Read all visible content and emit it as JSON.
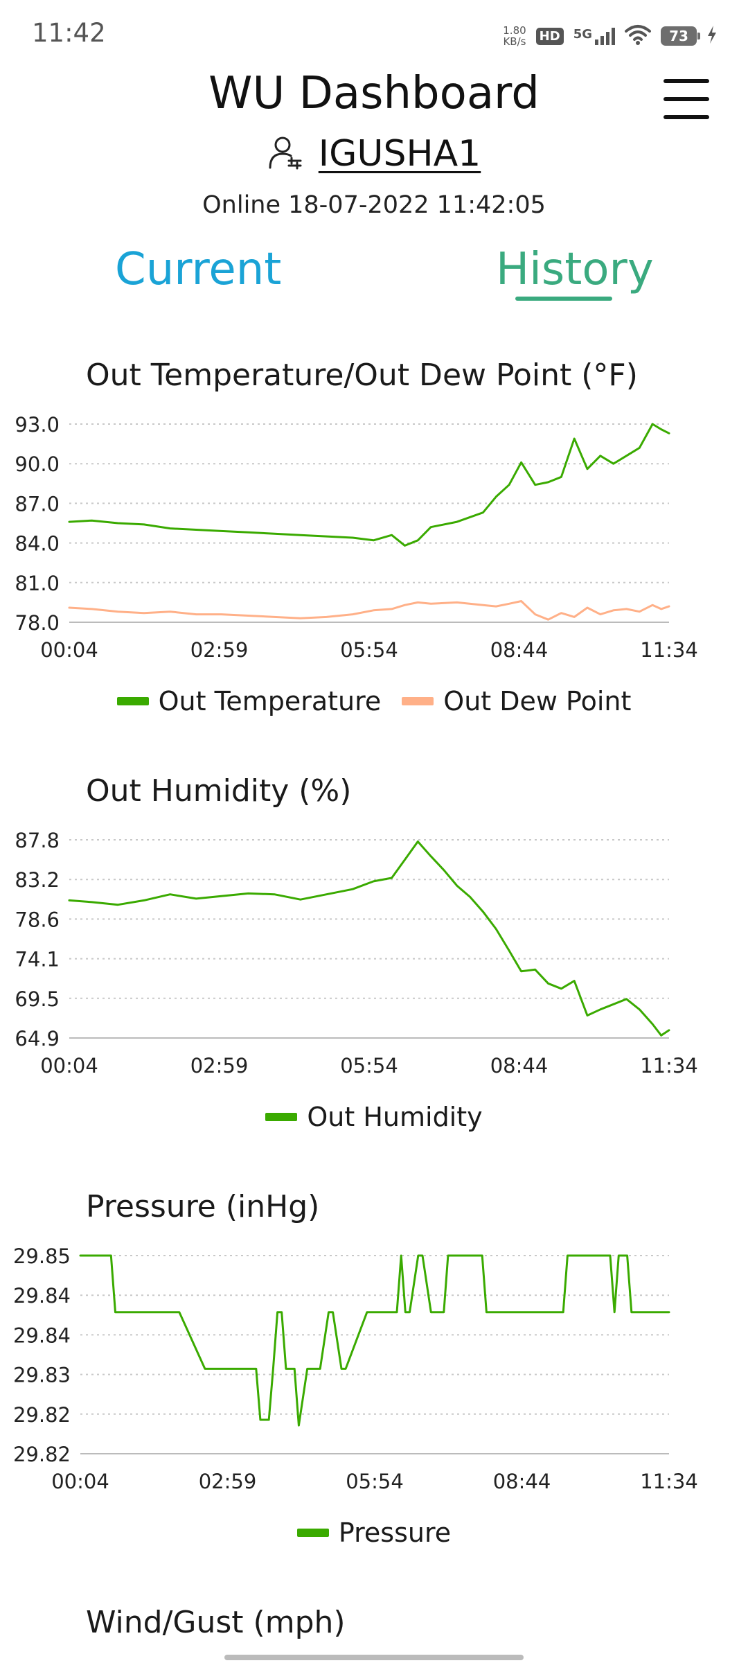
{
  "status_bar": {
    "time": "11:42",
    "net_speed_value": "1.80",
    "net_speed_unit": "KB/s",
    "hd": "HD",
    "network": "5G",
    "battery": "73"
  },
  "header": {
    "title": "WU Dashboard",
    "station_id": "IGUSHA1",
    "online_status": "Online 18-07-2022 11:42:05"
  },
  "tabs": [
    {
      "label": "Current",
      "active": false
    },
    {
      "label": "History",
      "active": true
    }
  ],
  "colors": {
    "green": "#3aaa00",
    "peach": "#ffb088",
    "tab_current": "#1aa3d6",
    "tab_history": "#3aaa7f"
  },
  "icons": [
    "menu-icon",
    "user-settings-icon",
    "wifi-icon",
    "signal-icon",
    "battery-icon",
    "charging-icon"
  ],
  "charts": [
    {
      "title": "Out Temperature/Out Dew Point (°F)"
    },
    {
      "title": "Out Humidity (%)"
    },
    {
      "title": "Pressure (inHg)"
    },
    {
      "title": "Wind/Gust (mph)"
    }
  ],
  "chart_data": [
    {
      "type": "line",
      "title": "Out Temperature/Out Dew Point (°F)",
      "x_tick_labels": [
        "00:04",
        "02:59",
        "05:54",
        "08:44",
        "11:34"
      ],
      "y_tick_labels": [
        "93.0",
        "90.0",
        "87.0",
        "84.0",
        "81.0",
        "78.0"
      ],
      "ylim": [
        78.0,
        93.0
      ],
      "grid": true,
      "legend_position": "bottom",
      "x": [
        "00:04",
        "00:30",
        "01:00",
        "01:30",
        "02:00",
        "02:30",
        "02:59",
        "03:30",
        "04:00",
        "04:30",
        "05:00",
        "05:30",
        "05:54",
        "06:15",
        "06:30",
        "06:45",
        "07:00",
        "07:30",
        "08:00",
        "08:15",
        "08:30",
        "08:44",
        "09:00",
        "09:15",
        "09:30",
        "09:45",
        "10:00",
        "10:15",
        "10:30",
        "10:45",
        "11:00",
        "11:15",
        "11:25",
        "11:34"
      ],
      "series": [
        {
          "name": "Out Temperature",
          "color": "#3aaa00",
          "values": [
            85.6,
            85.7,
            85.5,
            85.4,
            85.1,
            85.0,
            84.9,
            84.8,
            84.7,
            84.6,
            84.5,
            84.4,
            84.2,
            84.6,
            83.8,
            84.2,
            85.2,
            85.6,
            86.3,
            87.5,
            88.4,
            90.1,
            88.4,
            88.6,
            89.0,
            91.9,
            89.6,
            90.6,
            90.0,
            90.6,
            91.2,
            93.0,
            92.6,
            92.3
          ]
        },
        {
          "name": "Out Dew Point",
          "color": "#ffb088",
          "values": [
            79.1,
            79.0,
            78.8,
            78.7,
            78.8,
            78.6,
            78.6,
            78.5,
            78.4,
            78.3,
            78.4,
            78.6,
            78.9,
            79.0,
            79.3,
            79.5,
            79.4,
            79.5,
            79.3,
            79.2,
            79.4,
            79.6,
            78.6,
            78.2,
            78.7,
            78.4,
            79.1,
            78.6,
            78.9,
            79.0,
            78.8,
            79.3,
            79.0,
            79.2
          ]
        }
      ]
    },
    {
      "type": "line",
      "title": "Out Humidity (%)",
      "x_tick_labels": [
        "00:04",
        "02:59",
        "05:54",
        "08:44",
        "11:34"
      ],
      "y_tick_labels": [
        "87.8",
        "83.2",
        "78.6",
        "74.1",
        "69.5",
        "64.9"
      ],
      "ylim": [
        64.9,
        87.8
      ],
      "grid": true,
      "legend_position": "bottom",
      "x": [
        "00:04",
        "00:30",
        "01:00",
        "01:30",
        "02:00",
        "02:30",
        "02:59",
        "03:30",
        "04:00",
        "04:30",
        "05:00",
        "05:30",
        "05:54",
        "06:15",
        "06:30",
        "06:45",
        "07:00",
        "07:15",
        "07:30",
        "07:45",
        "08:00",
        "08:15",
        "08:30",
        "08:44",
        "09:00",
        "09:15",
        "09:30",
        "09:45",
        "10:00",
        "10:15",
        "10:30",
        "10:45",
        "11:00",
        "11:15",
        "11:25",
        "11:34"
      ],
      "series": [
        {
          "name": "Out Humidity",
          "color": "#3aaa00",
          "values": [
            80.8,
            80.6,
            80.3,
            80.8,
            81.5,
            81.0,
            81.3,
            81.6,
            81.5,
            80.9,
            81.5,
            82.1,
            83.0,
            83.4,
            85.5,
            87.6,
            85.9,
            84.3,
            82.5,
            81.2,
            79.5,
            77.5,
            75.0,
            72.6,
            72.8,
            71.2,
            70.6,
            71.5,
            67.5,
            68.2,
            68.8,
            69.4,
            68.2,
            66.5,
            65.2,
            65.8
          ]
        }
      ]
    },
    {
      "type": "line",
      "title": "Pressure (inHg)",
      "x_tick_labels": [
        "00:04",
        "02:59",
        "05:54",
        "08:44",
        "11:34"
      ],
      "y_tick_labels": [
        "29.85",
        "29.84",
        "29.84",
        "29.83",
        "29.82",
        "29.82"
      ],
      "ylim": [
        29.815,
        29.85
      ],
      "grid": true,
      "legend_position": "bottom",
      "x": [
        "00:04",
        "00:40",
        "00:45",
        "02:00",
        "02:30",
        "02:35",
        "03:30",
        "03:35",
        "03:45",
        "03:50",
        "03:55",
        "04:00",
        "04:05",
        "04:15",
        "04:20",
        "04:30",
        "04:45",
        "04:55",
        "05:00",
        "05:10",
        "05:15",
        "05:40",
        "05:45",
        "06:15",
        "06:20",
        "06:25",
        "06:30",
        "06:40",
        "06:45",
        "06:55",
        "07:10",
        "07:15",
        "07:55",
        "08:00",
        "09:30",
        "09:35",
        "10:25",
        "10:30",
        "10:35",
        "10:45",
        "10:50",
        "11:00",
        "11:34"
      ],
      "series": [
        {
          "name": "Pressure",
          "color": "#3aaa00",
          "values": [
            29.85,
            29.85,
            29.84,
            29.84,
            29.83,
            29.83,
            29.83,
            29.821,
            29.821,
            29.83,
            29.84,
            29.84,
            29.83,
            29.83,
            29.82,
            29.83,
            29.83,
            29.84,
            29.84,
            29.83,
            29.83,
            29.84,
            29.84,
            29.84,
            29.85,
            29.84,
            29.84,
            29.85,
            29.85,
            29.84,
            29.84,
            29.85,
            29.85,
            29.84,
            29.84,
            29.85,
            29.85,
            29.84,
            29.85,
            29.85,
            29.84,
            29.84,
            29.84
          ]
        }
      ]
    }
  ]
}
